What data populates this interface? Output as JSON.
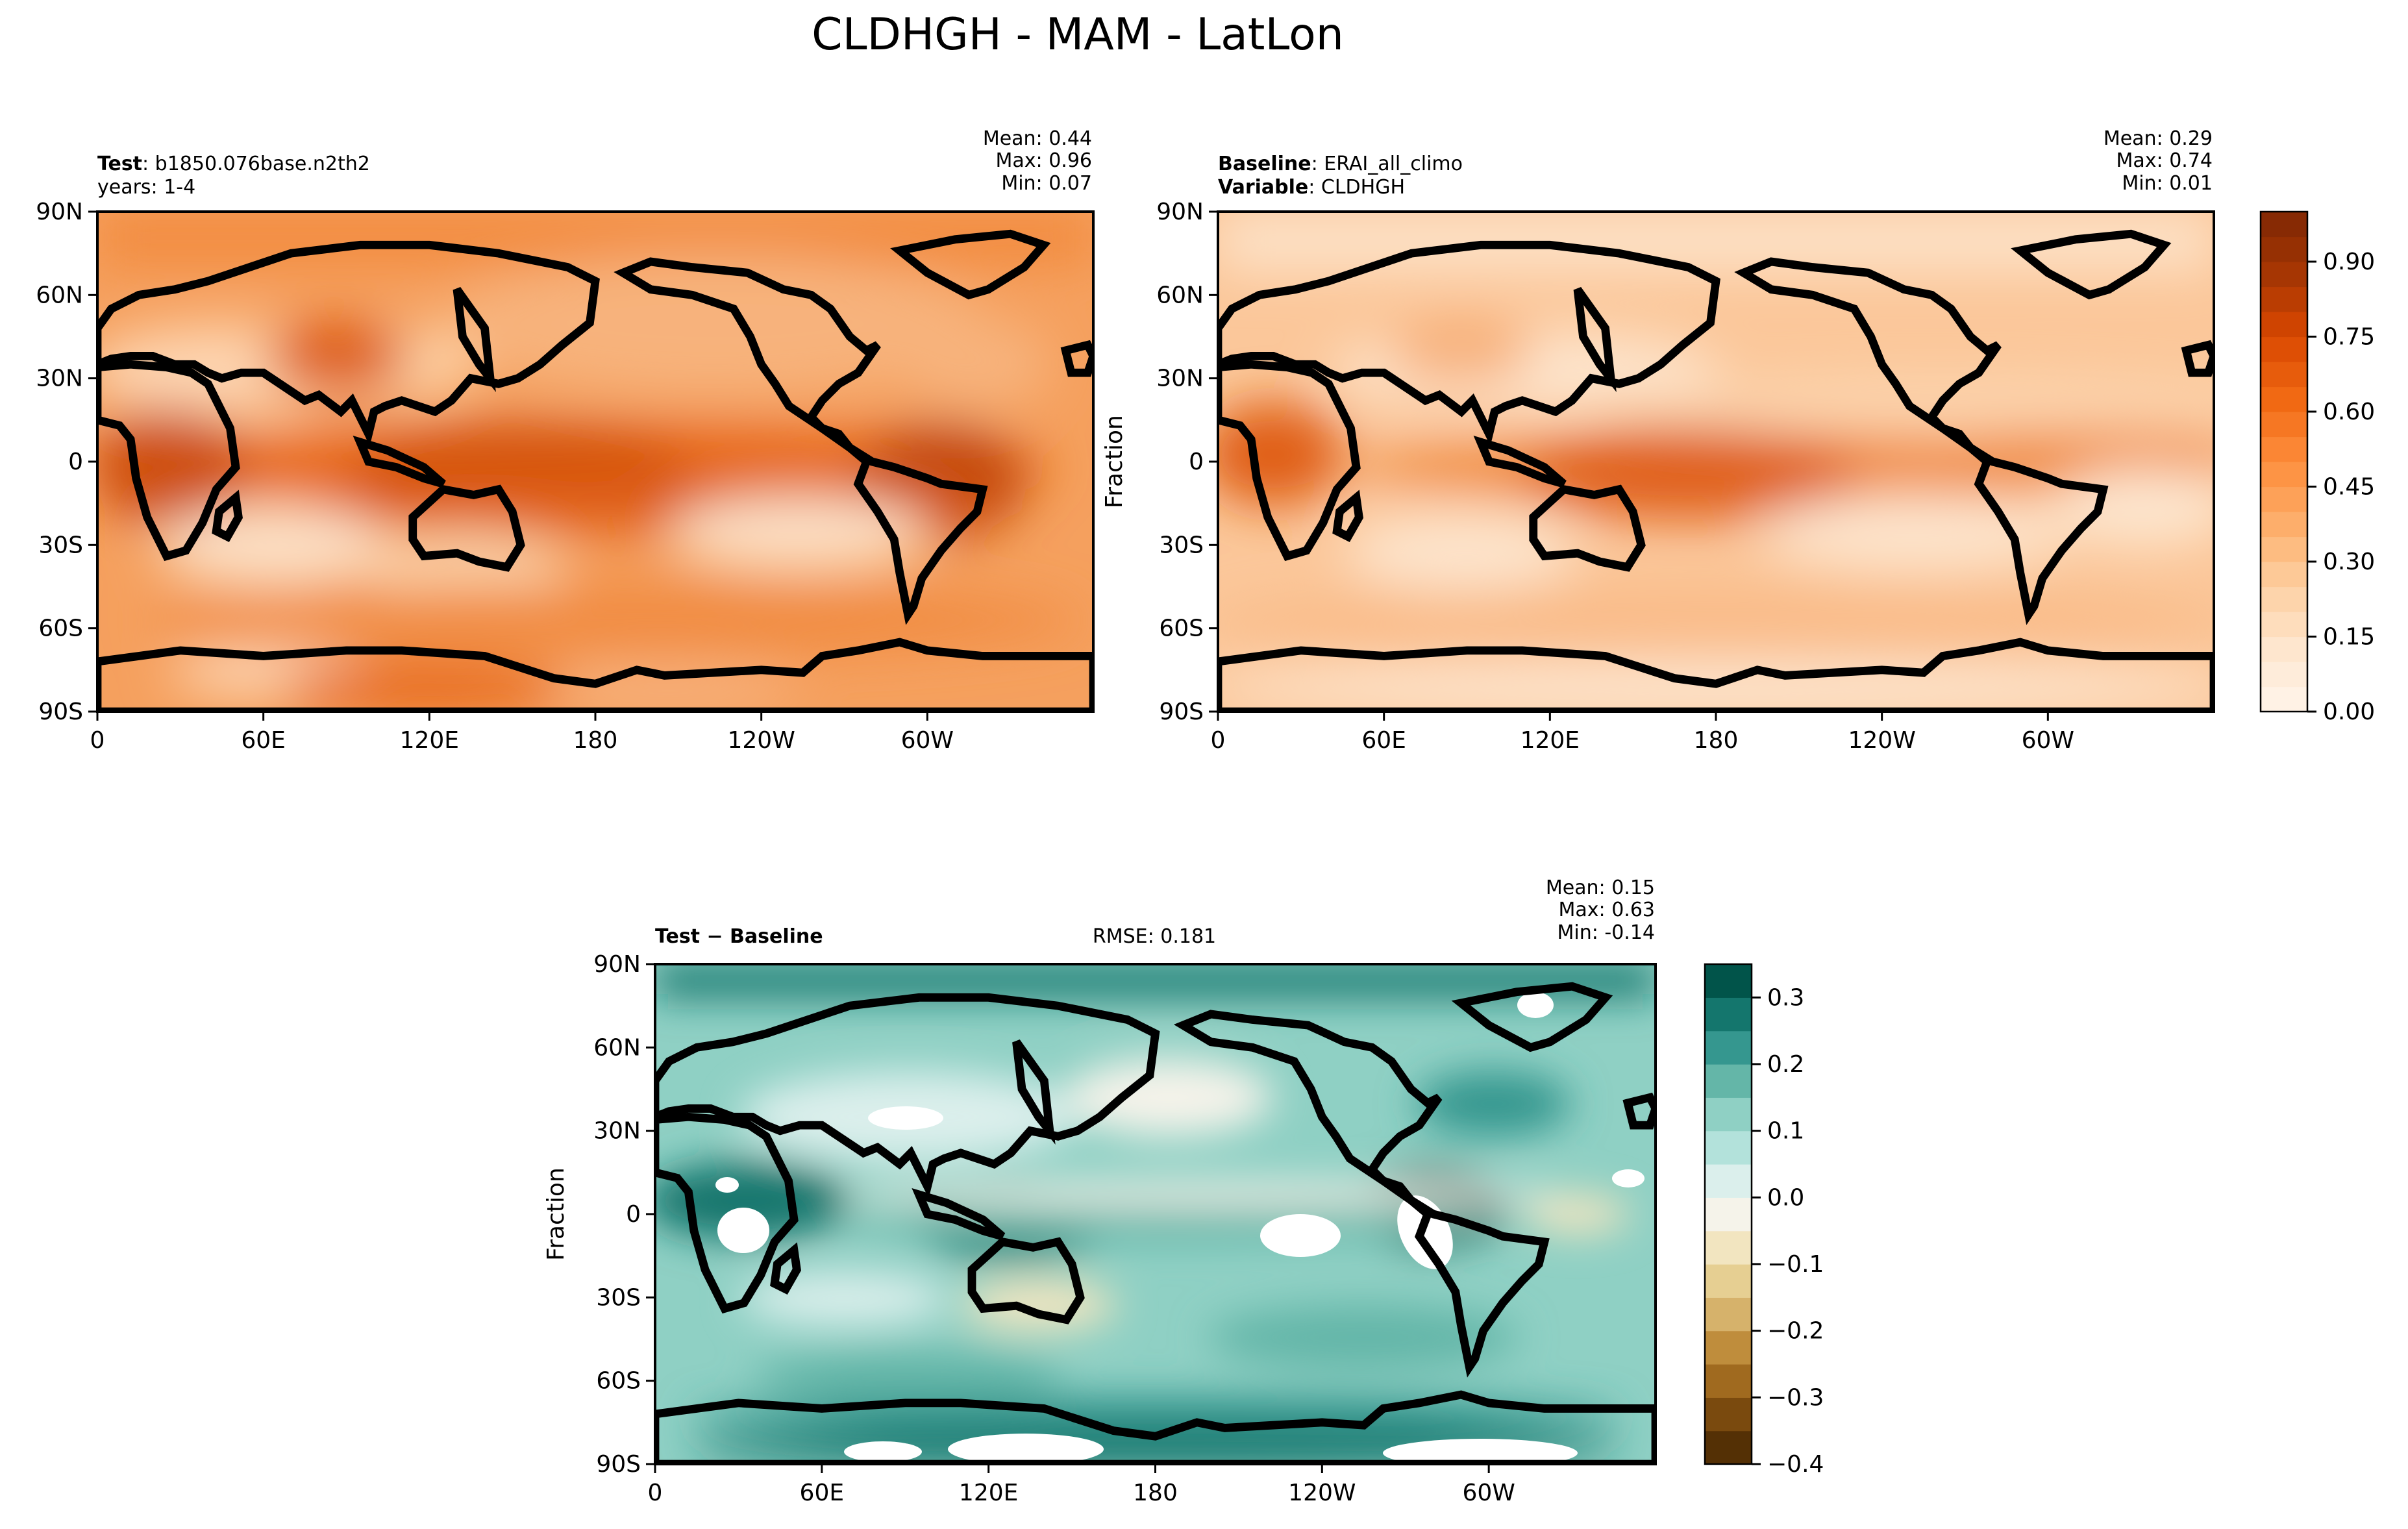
{
  "figure": {
    "title": "CLDHGH - MAM - LatLon"
  },
  "axes": {
    "lat_ticks": [
      "90N",
      "60N",
      "30N",
      "0",
      "30S",
      "60S",
      "90S"
    ],
    "lat_values": [
      90,
      60,
      30,
      0,
      -30,
      -60,
      -90
    ],
    "lon_ticks": [
      "0",
      "60E",
      "120E",
      "180",
      "120W",
      "60W"
    ],
    "lon_values": [
      0,
      60,
      120,
      180,
      240,
      300
    ]
  },
  "panels": {
    "test": {
      "label_bold": "Test",
      "label_rest": ": b1850.076base.n2th2",
      "line2": "years: 1-4",
      "stats": {
        "mean": "Mean:  0.44",
        "max": "Max:  0.96",
        "min": "Min:  0.07"
      }
    },
    "baseline": {
      "label_bold": "Baseline",
      "label_rest": ": ERAI_all_climo",
      "line2_bold": "Variable",
      "line2_rest": ": CLDHGH",
      "ylabel": "Fraction",
      "stats": {
        "mean": "Mean:  0.29",
        "max": "Max:  0.74",
        "min": "Min:  0.01"
      }
    },
    "diff": {
      "label_bold": "Test − Baseline",
      "rmse": "RMSE: 0.181",
      "ylabel": "Fraction",
      "stats": {
        "mean": "Mean:  0.15",
        "max": "Max:  0.63",
        "min": "Min: -0.14"
      }
    }
  },
  "colorbars": {
    "main": {
      "ticks": [
        "0.00",
        "0.15",
        "0.30",
        "0.45",
        "0.60",
        "0.75",
        "0.90"
      ],
      "values": [
        0,
        0.15,
        0.3,
        0.45,
        0.6,
        0.75,
        0.9
      ],
      "range": [
        0,
        1.0
      ],
      "levels": 20,
      "low_color": "#fff5eb",
      "high_color": "#7f2704"
    },
    "diff": {
      "ticks": [
        "0.3",
        "0.2",
        "0.1",
        "0.0",
        "−0.1",
        "−0.2",
        "−0.3",
        "−0.4"
      ],
      "values": [
        0.3,
        0.2,
        0.1,
        0.0,
        -0.1,
        -0.2,
        -0.3,
        -0.4
      ],
      "range": [
        -0.4,
        0.35
      ],
      "levels": 15,
      "palette": [
        "#543005",
        "#7a4a0e",
        "#a06a1f",
        "#bf8d3c",
        "#d6b26b",
        "#e6cf92",
        "#f2e5c0",
        "#f5f3ea",
        "#dbefec",
        "#b3e2db",
        "#8fd0c4",
        "#64b6a8",
        "#35978f",
        "#14766d",
        "#01544a"
      ]
    }
  },
  "chart_data": [
    {
      "type": "heatmap",
      "title": "Test",
      "variable": "CLDHGH",
      "x": [
        0,
        60,
        120,
        180,
        240,
        300
      ],
      "y": [
        90,
        60,
        30,
        0,
        -30,
        -60,
        -90
      ],
      "xlim": [
        0,
        360
      ],
      "ylim": [
        -90,
        90
      ],
      "zlim": [
        0,
        1.0
      ],
      "mean": 0.44,
      "max": 0.96,
      "min": 0.07
    },
    {
      "type": "heatmap",
      "title": "Baseline",
      "variable": "CLDHGH",
      "ylabel": "Fraction",
      "x": [
        0,
        60,
        120,
        180,
        240,
        300
      ],
      "y": [
        90,
        60,
        30,
        0,
        -30,
        -60,
        -90
      ],
      "xlim": [
        0,
        360
      ],
      "ylim": [
        -90,
        90
      ],
      "zlim": [
        0,
        1.0
      ],
      "mean": 0.29,
      "max": 0.74,
      "min": 0.01
    },
    {
      "type": "heatmap",
      "title": "Test − Baseline",
      "ylabel": "Fraction",
      "x": [
        0,
        60,
        120,
        180,
        240,
        300
      ],
      "y": [
        90,
        60,
        30,
        0,
        -30,
        -60,
        -90
      ],
      "xlim": [
        0,
        360
      ],
      "ylim": [
        -90,
        90
      ],
      "zlim": [
        -0.4,
        0.35
      ],
      "mean": 0.15,
      "max": 0.63,
      "min": -0.14,
      "rmse": 0.181
    }
  ]
}
